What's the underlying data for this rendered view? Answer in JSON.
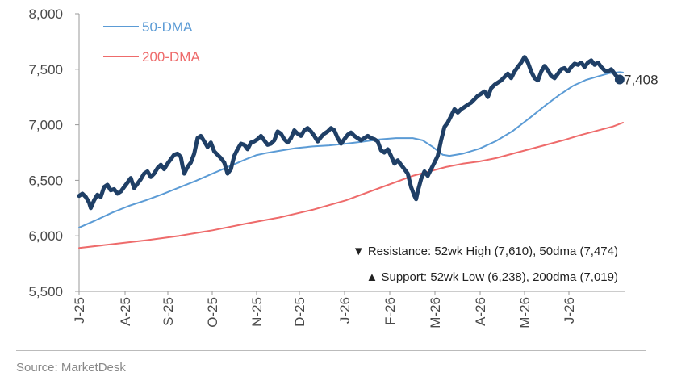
{
  "chart_data": {
    "type": "line",
    "ylim": [
      5500,
      8000
    ],
    "y_ticks": [
      5500,
      6000,
      6500,
      7000,
      7500,
      8000
    ],
    "y_tick_labels": [
      "5,500",
      "6,000",
      "6,500",
      "7,000",
      "7,500",
      "8,000"
    ],
    "x_tick_labels": [
      "J-25",
      "A-25",
      "S-25",
      "O-25",
      "N-25",
      "D-25",
      "J-26",
      "F-26",
      "M-26",
      "A-26",
      "M-26",
      "J-26"
    ],
    "x_range_months": [
      0,
      12.5
    ],
    "grid": false,
    "legend_position": "top-left",
    "series": [
      {
        "name": "50-DMA",
        "color": "#5b9bd5",
        "points": [
          [
            0.0,
            6075
          ],
          [
            0.5,
            6140
          ],
          [
            1.0,
            6210
          ],
          [
            1.5,
            6270
          ],
          [
            2.0,
            6320
          ],
          [
            2.5,
            6375
          ],
          [
            3.0,
            6435
          ],
          [
            3.5,
            6495
          ],
          [
            4.0,
            6560
          ],
          [
            4.5,
            6625
          ],
          [
            5.0,
            6690
          ],
          [
            5.3,
            6725
          ],
          [
            5.6,
            6745
          ],
          [
            6.0,
            6765
          ],
          [
            6.5,
            6790
          ],
          [
            7.0,
            6805
          ],
          [
            7.5,
            6815
          ],
          [
            8.0,
            6830
          ],
          [
            8.5,
            6848
          ],
          [
            9.0,
            6868
          ],
          [
            9.5,
            6880
          ],
          [
            10.0,
            6880
          ],
          [
            10.3,
            6860
          ],
          [
            10.6,
            6800
          ],
          [
            10.9,
            6730
          ],
          [
            11.1,
            6720
          ],
          [
            11.5,
            6740
          ],
          [
            12.0,
            6785
          ],
          [
            12.5,
            6855
          ],
          [
            13.0,
            6945
          ],
          [
            13.5,
            7060
          ],
          [
            14.0,
            7180
          ],
          [
            14.4,
            7270
          ],
          [
            14.8,
            7350
          ],
          [
            15.2,
            7405
          ],
          [
            15.6,
            7440
          ],
          [
            15.9,
            7465
          ],
          [
            16.2,
            7474
          ],
          [
            16.3,
            7470
          ]
        ]
      },
      {
        "name": "200-DMA",
        "color": "#ee6b6b",
        "points": [
          [
            0.0,
            5890
          ],
          [
            1.0,
            5925
          ],
          [
            2.0,
            5960
          ],
          [
            3.0,
            6000
          ],
          [
            4.0,
            6050
          ],
          [
            5.0,
            6110
          ],
          [
            6.0,
            6165
          ],
          [
            7.0,
            6235
          ],
          [
            8.0,
            6320
          ],
          [
            9.0,
            6430
          ],
          [
            10.0,
            6540
          ],
          [
            10.5,
            6580
          ],
          [
            11.0,
            6620
          ],
          [
            11.5,
            6650
          ],
          [
            12.0,
            6670
          ],
          [
            12.5,
            6700
          ],
          [
            13.0,
            6740
          ],
          [
            13.5,
            6780
          ],
          [
            14.0,
            6820
          ],
          [
            14.5,
            6860
          ],
          [
            15.0,
            6905
          ],
          [
            15.5,
            6945
          ],
          [
            16.0,
            6985
          ],
          [
            16.3,
            7019
          ]
        ]
      },
      {
        "name": "",
        "color": "#1f3f66",
        "points": [
          [
            0.0,
            6360
          ],
          [
            0.1,
            6380
          ],
          [
            0.2,
            6350
          ],
          [
            0.3,
            6300
          ],
          [
            0.35,
            6250
          ],
          [
            0.45,
            6320
          ],
          [
            0.55,
            6370
          ],
          [
            0.65,
            6350
          ],
          [
            0.75,
            6440
          ],
          [
            0.85,
            6460
          ],
          [
            0.95,
            6410
          ],
          [
            1.05,
            6420
          ],
          [
            1.15,
            6380
          ],
          [
            1.25,
            6400
          ],
          [
            1.35,
            6440
          ],
          [
            1.45,
            6480
          ],
          [
            1.55,
            6520
          ],
          [
            1.65,
            6430
          ],
          [
            1.75,
            6470
          ],
          [
            1.85,
            6510
          ],
          [
            1.95,
            6560
          ],
          [
            2.05,
            6580
          ],
          [
            2.15,
            6530
          ],
          [
            2.25,
            6560
          ],
          [
            2.35,
            6610
          ],
          [
            2.45,
            6640
          ],
          [
            2.55,
            6600
          ],
          [
            2.65,
            6650
          ],
          [
            2.75,
            6690
          ],
          [
            2.85,
            6730
          ],
          [
            2.95,
            6740
          ],
          [
            3.05,
            6710
          ],
          [
            3.1,
            6630
          ],
          [
            3.15,
            6560
          ],
          [
            3.25,
            6620
          ],
          [
            3.35,
            6660
          ],
          [
            3.45,
            6740
          ],
          [
            3.55,
            6880
          ],
          [
            3.65,
            6900
          ],
          [
            3.75,
            6850
          ],
          [
            3.85,
            6800
          ],
          [
            3.95,
            6840
          ],
          [
            4.05,
            6760
          ],
          [
            4.15,
            6730
          ],
          [
            4.25,
            6700
          ],
          [
            4.35,
            6660
          ],
          [
            4.45,
            6560
          ],
          [
            4.55,
            6600
          ],
          [
            4.65,
            6720
          ],
          [
            4.75,
            6780
          ],
          [
            4.85,
            6830
          ],
          [
            4.95,
            6820
          ],
          [
            5.05,
            6780
          ],
          [
            5.15,
            6840
          ],
          [
            5.25,
            6850
          ],
          [
            5.35,
            6870
          ],
          [
            5.45,
            6900
          ],
          [
            5.55,
            6860
          ],
          [
            5.65,
            6820
          ],
          [
            5.75,
            6830
          ],
          [
            5.85,
            6860
          ],
          [
            5.95,
            6940
          ],
          [
            6.05,
            6920
          ],
          [
            6.15,
            6870
          ],
          [
            6.25,
            6840
          ],
          [
            6.35,
            6880
          ],
          [
            6.45,
            6950
          ],
          [
            6.55,
            6920
          ],
          [
            6.65,
            6900
          ],
          [
            6.75,
            6950
          ],
          [
            6.85,
            6970
          ],
          [
            6.95,
            6940
          ],
          [
            7.05,
            6900
          ],
          [
            7.15,
            6850
          ],
          [
            7.25,
            6890
          ],
          [
            7.35,
            6920
          ],
          [
            7.45,
            6940
          ],
          [
            7.55,
            6970
          ],
          [
            7.65,
            6950
          ],
          [
            7.75,
            6880
          ],
          [
            7.85,
            6830
          ],
          [
            7.95,
            6870
          ],
          [
            8.05,
            6910
          ],
          [
            8.15,
            6930
          ],
          [
            8.25,
            6900
          ],
          [
            8.35,
            6880
          ],
          [
            8.45,
            6860
          ],
          [
            8.55,
            6880
          ],
          [
            8.65,
            6900
          ],
          [
            8.75,
            6880
          ],
          [
            8.85,
            6870
          ],
          [
            8.95,
            6850
          ],
          [
            9.05,
            6770
          ],
          [
            9.15,
            6750
          ],
          [
            9.25,
            6780
          ],
          [
            9.35,
            6720
          ],
          [
            9.45,
            6650
          ],
          [
            9.55,
            6680
          ],
          [
            9.65,
            6640
          ],
          [
            9.75,
            6600
          ],
          [
            9.85,
            6560
          ],
          [
            9.95,
            6440
          ],
          [
            10.05,
            6360
          ],
          [
            10.1,
            6330
          ],
          [
            10.15,
            6400
          ],
          [
            10.25,
            6510
          ],
          [
            10.35,
            6580
          ],
          [
            10.45,
            6540
          ],
          [
            10.55,
            6600
          ],
          [
            10.65,
            6660
          ],
          [
            10.75,
            6720
          ],
          [
            10.85,
            6860
          ],
          [
            10.95,
            6980
          ],
          [
            11.05,
            7020
          ],
          [
            11.15,
            7080
          ],
          [
            11.25,
            7140
          ],
          [
            11.35,
            7110
          ],
          [
            11.45,
            7140
          ],
          [
            11.55,
            7160
          ],
          [
            11.65,
            7180
          ],
          [
            11.75,
            7200
          ],
          [
            11.85,
            7230
          ],
          [
            11.95,
            7260
          ],
          [
            12.05,
            7280
          ],
          [
            12.15,
            7300
          ],
          [
            12.25,
            7250
          ],
          [
            12.35,
            7330
          ],
          [
            12.45,
            7360
          ],
          [
            12.55,
            7380
          ],
          [
            12.65,
            7400
          ],
          [
            12.75,
            7430
          ],
          [
            12.85,
            7460
          ],
          [
            12.95,
            7420
          ],
          [
            13.05,
            7480
          ],
          [
            13.15,
            7520
          ],
          [
            13.25,
            7560
          ],
          [
            13.35,
            7610
          ],
          [
            13.45,
            7560
          ],
          [
            13.55,
            7480
          ],
          [
            13.65,
            7420
          ],
          [
            13.75,
            7400
          ],
          [
            13.85,
            7480
          ],
          [
            13.95,
            7530
          ],
          [
            14.05,
            7490
          ],
          [
            14.15,
            7440
          ],
          [
            14.25,
            7420
          ],
          [
            14.35,
            7460
          ],
          [
            14.45,
            7500
          ],
          [
            14.55,
            7510
          ],
          [
            14.65,
            7480
          ],
          [
            14.75,
            7520
          ],
          [
            14.85,
            7550
          ],
          [
            14.95,
            7540
          ],
          [
            15.05,
            7560
          ],
          [
            15.15,
            7520
          ],
          [
            15.25,
            7560
          ],
          [
            15.35,
            7580
          ],
          [
            15.45,
            7540
          ],
          [
            15.55,
            7560
          ],
          [
            15.65,
            7520
          ],
          [
            15.75,
            7490
          ],
          [
            15.85,
            7480
          ],
          [
            15.95,
            7500
          ],
          [
            16.05,
            7460
          ],
          [
            16.1,
            7440
          ],
          [
            16.2,
            7408
          ]
        ]
      }
    ],
    "last_value_label": "7,408",
    "annotations": [
      "▼ Resistance:  52wk High (7,610), 50dma (7,474)",
      "▲ Support:  52wk Low (6,238), 200dma (7,019)"
    ]
  },
  "source": "Source: MarketDesk"
}
